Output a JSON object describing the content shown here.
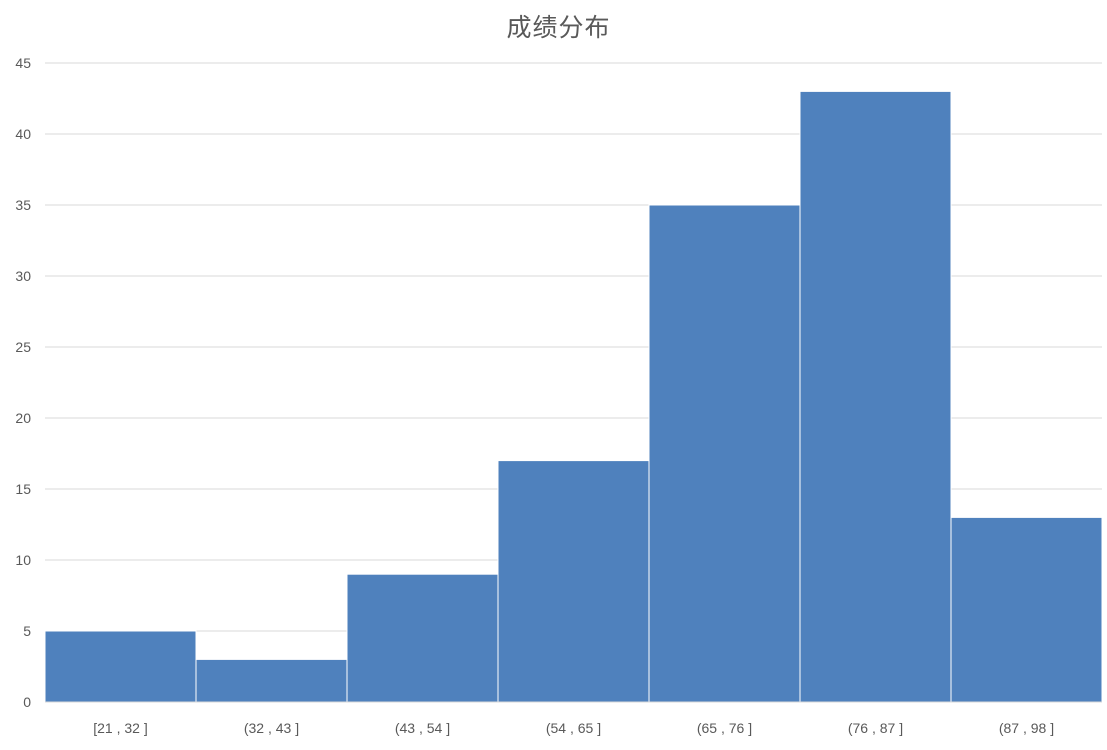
{
  "chart_data": {
    "type": "bar",
    "title": "成绩分布",
    "xlabel": "",
    "ylabel": "",
    "categories": [
      "[21 , 32 ]",
      "(32 , 43 ]",
      "(43 , 54 ]",
      "(54 , 65 ]",
      "(65 , 76 ]",
      "(76 , 87 ]",
      "(87 , 98 ]"
    ],
    "values": [
      5,
      3,
      9,
      17,
      35,
      43,
      13
    ],
    "ylim": [
      0,
      45
    ],
    "yticks": [
      0,
      5,
      10,
      15,
      20,
      25,
      30,
      35,
      40,
      45
    ],
    "grid": true,
    "legend": "none",
    "colors": {
      "bar": "#4F81BD",
      "grid": "#D9D9D9",
      "text": "#595959"
    }
  }
}
